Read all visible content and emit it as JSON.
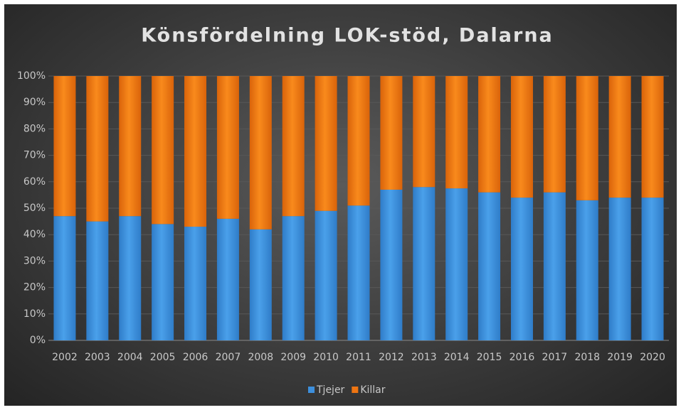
{
  "chart_data": {
    "type": "stacked_bar_100",
    "title": "Könsfördelning LOK-stöd, Dalarna",
    "categories": [
      "2002",
      "2003",
      "2004",
      "2005",
      "2006",
      "2007",
      "2008",
      "2009",
      "2010",
      "2011",
      "2012",
      "2013",
      "2014",
      "2015",
      "2016",
      "2017",
      "2018",
      "2019",
      "2020"
    ],
    "series": [
      {
        "name": "Tjejer",
        "color": "#3d8fdc",
        "values": [
          47,
          45,
          47,
          44,
          43,
          46,
          42,
          47,
          49,
          51,
          57,
          58,
          57.5,
          56,
          54,
          56,
          53,
          54,
          54
        ]
      },
      {
        "name": "Killar",
        "color": "#ee7512",
        "values": [
          53,
          55,
          53,
          56,
          57,
          54,
          58,
          53,
          51,
          49,
          43,
          42,
          42.5,
          44,
          46,
          44,
          47,
          46,
          46
        ]
      }
    ],
    "ylim": [
      0,
      100
    ],
    "yticks": [
      {
        "value": 0,
        "label": "0%"
      },
      {
        "value": 10,
        "label": "10%"
      },
      {
        "value": 20,
        "label": "20%"
      },
      {
        "value": 30,
        "label": "30%"
      },
      {
        "value": 40,
        "label": "40%"
      },
      {
        "value": 50,
        "label": "50%"
      },
      {
        "value": 60,
        "label": "60%"
      },
      {
        "value": 70,
        "label": "70%"
      },
      {
        "value": 80,
        "label": "80%"
      },
      {
        "value": 90,
        "label": "90%"
      },
      {
        "value": 100,
        "label": "100%"
      }
    ],
    "grid": true,
    "legend": "bottom"
  }
}
